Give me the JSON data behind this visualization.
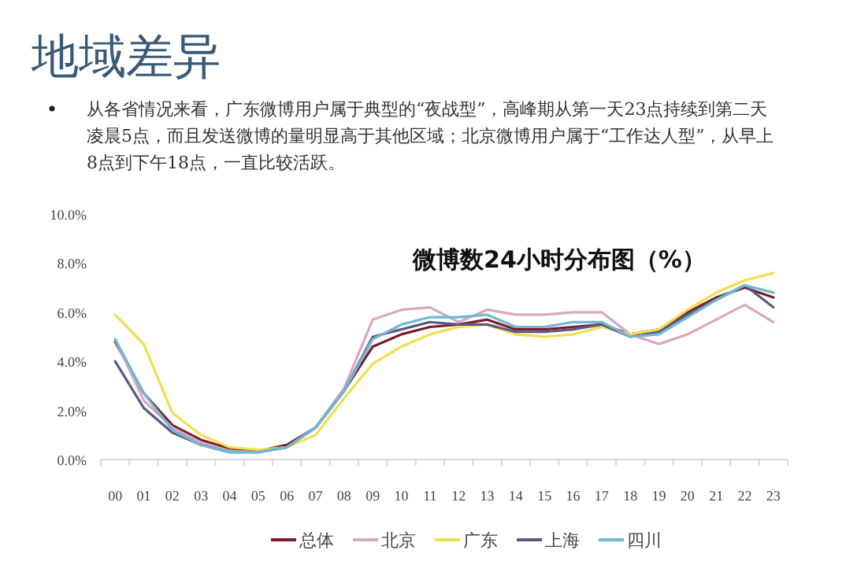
{
  "chart_data": {
    "type": "line",
    "title": "微博数24小时分布图（%）",
    "annotations": [
      "地域差异",
      "从各省情况来看，广东微博用户属于典型的“夜战型”，高峰期从第一天23点持续到第二天凌晨5点，而且发送微博的量明显高于其他区域；北京微博用户属于“工作达人型”，从早上8点到下午18点，一直比较活跃。"
    ],
    "categories": [
      "00",
      "01",
      "02",
      "03",
      "04",
      "05",
      "06",
      "07",
      "08",
      "09",
      "10",
      "11",
      "12",
      "13",
      "14",
      "15",
      "16",
      "17",
      "18",
      "19",
      "20",
      "21",
      "22",
      "23"
    ],
    "ylim": [
      0,
      10
    ],
    "yticks": [
      {
        "value": 0,
        "label": "0.0%"
      },
      {
        "value": 2,
        "label": "2.0%"
      },
      {
        "value": 4,
        "label": "4.0%"
      },
      {
        "value": 6,
        "label": "6.0%"
      },
      {
        "value": 8,
        "label": "8.0%"
      },
      {
        "value": 10,
        "label": "10.0%"
      }
    ],
    "grid": false,
    "legend": "bottom",
    "marker": "none",
    "line_style": "solid",
    "series": [
      {
        "name": "总体",
        "color": "#7b1c2e",
        "values": [
          4.8,
          2.7,
          1.4,
          0.8,
          0.45,
          0.35,
          0.6,
          1.3,
          2.8,
          4.6,
          5.1,
          5.4,
          5.5,
          5.7,
          5.3,
          5.3,
          5.4,
          5.5,
          5.1,
          5.3,
          6.0,
          6.6,
          7.0,
          6.6
        ]
      },
      {
        "name": "北京",
        "color": "#d8a8c0",
        "values": [
          4.9,
          2.4,
          1.3,
          0.7,
          0.35,
          0.3,
          0.5,
          1.3,
          2.9,
          5.7,
          6.1,
          6.2,
          5.6,
          6.1,
          5.9,
          5.9,
          6.0,
          6.0,
          5.1,
          4.7,
          5.1,
          5.7,
          6.3,
          5.6
        ]
      },
      {
        "name": "广东",
        "color": "#f0e050",
        "values": [
          5.9,
          4.7,
          1.9,
          1.0,
          0.5,
          0.4,
          0.5,
          1.0,
          2.5,
          3.9,
          4.6,
          5.1,
          5.4,
          5.5,
          5.1,
          5.0,
          5.1,
          5.4,
          5.1,
          5.3,
          6.1,
          6.8,
          7.3,
          7.6
        ]
      },
      {
        "name": "上海",
        "color": "#5a5a80",
        "values": [
          4.0,
          2.1,
          1.1,
          0.6,
          0.3,
          0.3,
          0.5,
          1.3,
          2.8,
          5.0,
          5.3,
          5.6,
          5.5,
          5.5,
          5.2,
          5.2,
          5.3,
          5.5,
          5.0,
          5.2,
          5.9,
          6.5,
          7.1,
          6.2
        ]
      },
      {
        "name": "四川",
        "color": "#70b8d0",
        "values": [
          4.9,
          2.7,
          1.2,
          0.6,
          0.3,
          0.3,
          0.5,
          1.3,
          2.8,
          4.9,
          5.5,
          5.8,
          5.8,
          5.9,
          5.4,
          5.4,
          5.6,
          5.6,
          5.0,
          5.1,
          5.8,
          6.5,
          7.1,
          6.8
        ]
      }
    ]
  }
}
